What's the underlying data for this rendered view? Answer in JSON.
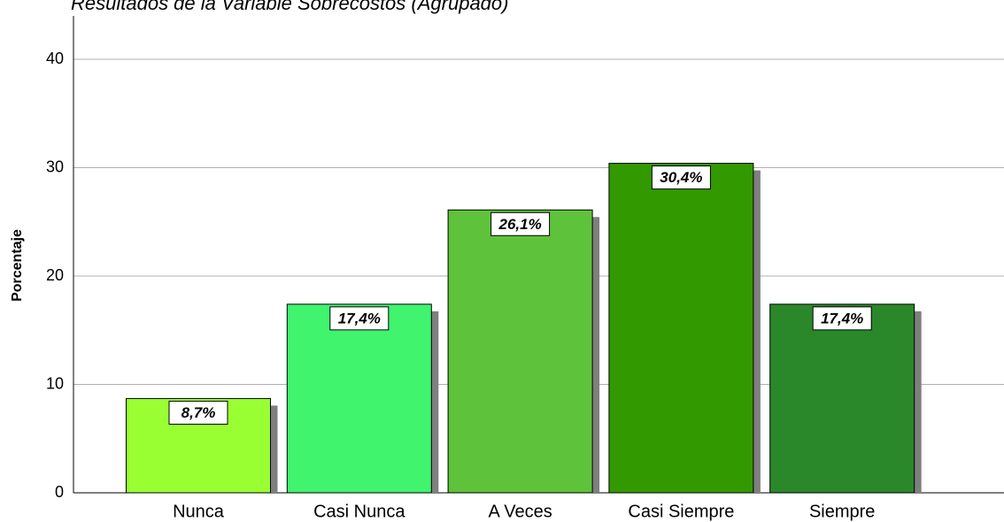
{
  "chart_data": {
    "type": "bar",
    "title": "Resultados de la Variable Sobrecostos (Agrupado)",
    "y_label": "Porcentaje",
    "categories": [
      "Nunca",
      "Casi Nunca",
      "A Veces",
      "Casi Siempre",
      "Siempre"
    ],
    "values": [
      8.7,
      17.4,
      26.1,
      30.4,
      17.4
    ],
    "value_labels": [
      "8,7%",
      "17,4%",
      "26,1%",
      "30,4%",
      "17,4%"
    ],
    "colors": [
      "#99ff33",
      "#40f46e",
      "#5ec23a",
      "#339900",
      "#2a882a"
    ],
    "ylim": [
      0,
      44
    ],
    "yticks": [
      0,
      10,
      20,
      30,
      40
    ],
    "grid": true
  }
}
